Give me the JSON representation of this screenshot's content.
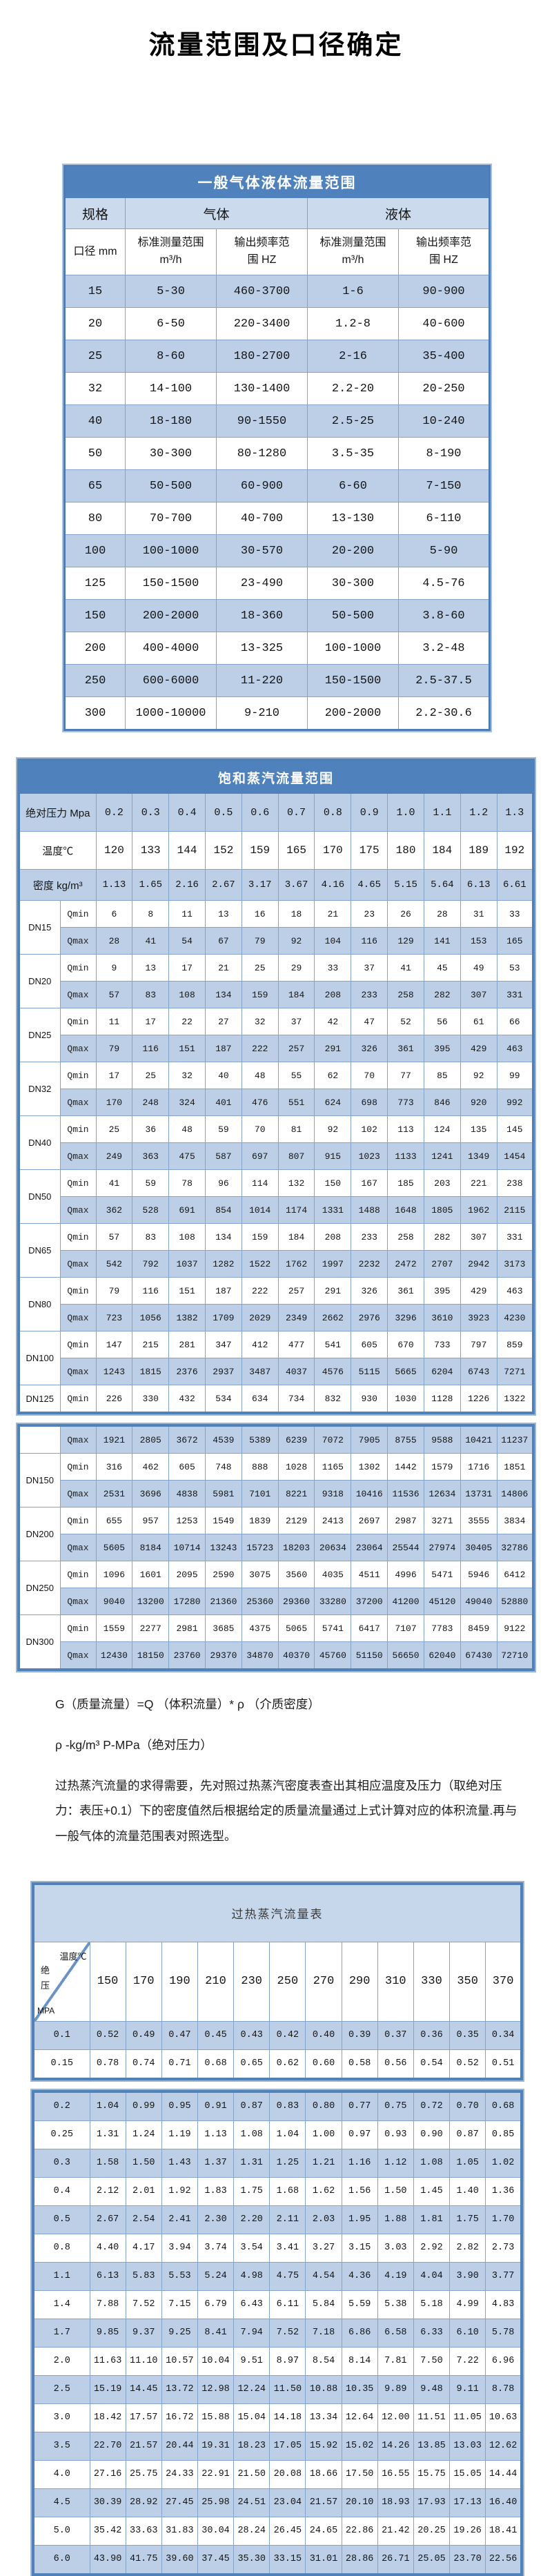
{
  "page_title": "流量范围及口径确定",
  "table1": {
    "title": "一般气体液体流量范围",
    "header": {
      "spec": "规格",
      "gas": "气体",
      "liquid": "液体",
      "diameter": "口径 mm",
      "range_l1": "标准测量范围",
      "range_l2": "m³/h",
      "freq_l1": "输出频率范",
      "freq_l2": "围 HZ"
    },
    "rows": [
      [
        "15",
        "5-30",
        "460-3700",
        "1-6",
        "90-900"
      ],
      [
        "20",
        "6-50",
        "220-3400",
        "1.2-8",
        "40-600"
      ],
      [
        "25",
        "8-60",
        "180-2700",
        "2-16",
        "35-400"
      ],
      [
        "32",
        "14-100",
        "130-1400",
        "2.2-20",
        "20-250"
      ],
      [
        "40",
        "18-180",
        "90-1550",
        "2.5-25",
        "10-240"
      ],
      [
        "50",
        "30-300",
        "80-1280",
        "3.5-35",
        "8-190"
      ],
      [
        "65",
        "50-500",
        "60-900",
        "6-60",
        "7-150"
      ],
      [
        "80",
        "70-700",
        "40-700",
        "13-130",
        "6-110"
      ],
      [
        "100",
        "100-1000",
        "30-570",
        "20-200",
        "5-90"
      ],
      [
        "125",
        "150-1500",
        "23-490",
        "30-300",
        "4.5-76"
      ],
      [
        "150",
        "200-2000",
        "18-360",
        "50-500",
        "3.8-60"
      ],
      [
        "200",
        "400-4000",
        "13-325",
        "100-1000",
        "3.2-48"
      ],
      [
        "250",
        "600-6000",
        "11-220",
        "150-1500",
        "2.5-37.5"
      ],
      [
        "300",
        "1000-10000",
        "9-210",
        "200-2000",
        "2.2-30.6"
      ]
    ]
  },
  "table2": {
    "title": "饱和蒸汽流量范围",
    "pressure_label": "绝对压力 Mpa",
    "temperature_label": "温度℃",
    "density_label": "密度 kg/m³",
    "qmin_label": "Qmin",
    "qmax_label": "Qmax",
    "pressures": [
      "0.2",
      "0.3",
      "0.4",
      "0.5",
      "0.6",
      "0.7",
      "0.8",
      "0.9",
      "1.0",
      "1.1",
      "1.2",
      "1.3"
    ],
    "temperatures": [
      "120",
      "133",
      "144",
      "152",
      "159",
      "165",
      "170",
      "175",
      "180",
      "184",
      "189",
      "192"
    ],
    "densities": [
      "1.13",
      "1.65",
      "2.16",
      "2.67",
      "3.17",
      "3.67",
      "4.16",
      "4.65",
      "5.15",
      "5.64",
      "6.13",
      "6.61"
    ],
    "groups_a": [
      {
        "dn": "DN15",
        "qmin": [
          "6",
          "8",
          "11",
          "13",
          "16",
          "18",
          "21",
          "23",
          "26",
          "28",
          "31",
          "33"
        ],
        "qmax": [
          "28",
          "41",
          "54",
          "67",
          "79",
          "92",
          "104",
          "116",
          "129",
          "141",
          "153",
          "165"
        ]
      },
      {
        "dn": "DN20",
        "qmin": [
          "9",
          "13",
          "17",
          "21",
          "25",
          "29",
          "33",
          "37",
          "41",
          "45",
          "49",
          "53"
        ],
        "qmax": [
          "57",
          "83",
          "108",
          "134",
          "159",
          "184",
          "208",
          "233",
          "258",
          "282",
          "307",
          "331"
        ]
      },
      {
        "dn": "DN25",
        "qmin": [
          "11",
          "17",
          "22",
          "27",
          "32",
          "37",
          "42",
          "47",
          "52",
          "56",
          "61",
          "66"
        ],
        "qmax": [
          "79",
          "116",
          "151",
          "187",
          "222",
          "257",
          "291",
          "326",
          "361",
          "395",
          "429",
          "463"
        ]
      },
      {
        "dn": "DN32",
        "qmin": [
          "17",
          "25",
          "32",
          "40",
          "48",
          "55",
          "62",
          "70",
          "77",
          "85",
          "92",
          "99"
        ],
        "qmax": [
          "170",
          "248",
          "324",
          "401",
          "476",
          "551",
          "624",
          "698",
          "773",
          "846",
          "920",
          "992"
        ]
      },
      {
        "dn": "DN40",
        "qmin": [
          "25",
          "36",
          "48",
          "59",
          "70",
          "81",
          "92",
          "102",
          "113",
          "124",
          "135",
          "145"
        ],
        "qmax": [
          "249",
          "363",
          "475",
          "587",
          "697",
          "807",
          "915",
          "1023",
          "1133",
          "1241",
          "1349",
          "1454"
        ]
      },
      {
        "dn": "DN50",
        "qmin": [
          "41",
          "59",
          "78",
          "96",
          "114",
          "132",
          "150",
          "167",
          "185",
          "203",
          "221",
          "238"
        ],
        "qmax": [
          "362",
          "528",
          "691",
          "854",
          "1014",
          "1174",
          "1331",
          "1488",
          "1648",
          "1805",
          "1962",
          "2115"
        ]
      },
      {
        "dn": "DN65",
        "qmin": [
          "57",
          "83",
          "108",
          "134",
          "159",
          "184",
          "208",
          "233",
          "258",
          "282",
          "307",
          "331"
        ],
        "qmax": [
          "542",
          "792",
          "1037",
          "1282",
          "1522",
          "1762",
          "1997",
          "2232",
          "2472",
          "2707",
          "2942",
          "3173"
        ]
      },
      {
        "dn": "DN80",
        "qmin": [
          "79",
          "116",
          "151",
          "187",
          "222",
          "257",
          "291",
          "326",
          "361",
          "395",
          "429",
          "463"
        ],
        "qmax": [
          "723",
          "1056",
          "1382",
          "1709",
          "2029",
          "2349",
          "2662",
          "2976",
          "3296",
          "3610",
          "3923",
          "4230"
        ]
      },
      {
        "dn": "DN100",
        "qmin": [
          "147",
          "215",
          "281",
          "347",
          "412",
          "477",
          "541",
          "605",
          "670",
          "733",
          "797",
          "859"
        ],
        "qmax": [
          "1243",
          "1815",
          "2376",
          "2937",
          "3487",
          "4037",
          "4576",
          "5115",
          "5665",
          "6204",
          "6743",
          "7271"
        ]
      },
      {
        "dn": "DN125",
        "qmin": [
          "226",
          "330",
          "432",
          "534",
          "634",
          "734",
          "832",
          "930",
          "1030",
          "1128",
          "1226",
          "1322"
        ]
      }
    ],
    "orphan_qmax": [
      "1921",
      "2805",
      "3672",
      "4539",
      "5389",
      "6239",
      "7072",
      "7905",
      "8755",
      "9588",
      "10421",
      "11237"
    ],
    "groups_b": [
      {
        "dn": "DN150",
        "qmin": [
          "316",
          "462",
          "605",
          "748",
          "888",
          "1028",
          "1165",
          "1302",
          "1442",
          "1579",
          "1716",
          "1851"
        ],
        "qmax": [
          "2531",
          "3696",
          "4838",
          "5981",
          "7101",
          "8221",
          "9318",
          "10416",
          "11536",
          "12634",
          "13731",
          "14806"
        ]
      },
      {
        "dn": "DN200",
        "qmin": [
          "655",
          "957",
          "1253",
          "1549",
          "1839",
          "2129",
          "2413",
          "2697",
          "2987",
          "3271",
          "3555",
          "3834"
        ],
        "qmax": [
          "5605",
          "8184",
          "10714",
          "13243",
          "15723",
          "18203",
          "20634",
          "23064",
          "25544",
          "27974",
          "30405",
          "32786"
        ]
      },
      {
        "dn": "DN250",
        "qmin": [
          "1096",
          "1601",
          "2095",
          "2590",
          "3075",
          "3560",
          "4035",
          "4511",
          "4996",
          "5471",
          "5946",
          "6412"
        ],
        "qmax": [
          "9040",
          "13200",
          "17280",
          "21360",
          "25360",
          "29360",
          "33280",
          "37200",
          "41200",
          "45120",
          "49040",
          "52880"
        ]
      },
      {
        "dn": "DN300",
        "qmin": [
          "1559",
          "2277",
          "2981",
          "3685",
          "4375",
          "5065",
          "5741",
          "6417",
          "7107",
          "7783",
          "8459",
          "9122"
        ],
        "qmax": [
          "12430",
          "18150",
          "23760",
          "29370",
          "34870",
          "40370",
          "45760",
          "51150",
          "56650",
          "62040",
          "67430",
          "72710"
        ]
      }
    ]
  },
  "notes": {
    "line1": "G（质量流量）=Q （体积流量）* ρ （介质密度）",
    "line2": "ρ -kg/m³ P-MPa（绝对压力）",
    "line3": "过热蒸汽流量的求得需要，先对照过热蒸汽密度表查出其相应温度及压力（取绝对压力：表压+0.1）下的密度值然后根据给定的质量流量通过上式计算对应的体积流量.再与一般气体的流量范围表对照选型。"
  },
  "table3": {
    "title": "过热蒸汽流量表",
    "corner": {
      "temp": "温度℃",
      "pressure": "绝压",
      "unit": "MPA"
    },
    "temps": [
      "150",
      "170",
      "190",
      "210",
      "230",
      "250",
      "270",
      "290",
      "310",
      "330",
      "350",
      "370"
    ],
    "rows_a": [
      {
        "p": "0.1",
        "v": [
          "0.52",
          "0.49",
          "0.47",
          "0.45",
          "0.43",
          "0.42",
          "0.40",
          "0.39",
          "0.37",
          "0.36",
          "0.35",
          "0.34"
        ]
      },
      {
        "p": "0.15",
        "v": [
          "0.78",
          "0.74",
          "0.71",
          "0.68",
          "0.65",
          "0.62",
          "0.60",
          "0.58",
          "0.56",
          "0.54",
          "0.52",
          "0.51"
        ]
      }
    ],
    "rows_b": [
      {
        "p": "0.2",
        "v": [
          "1.04",
          "0.99",
          "0.95",
          "0.91",
          "0.87",
          "0.83",
          "0.80",
          "0.77",
          "0.75",
          "0.72",
          "0.70",
          "0.68"
        ]
      },
      {
        "p": "0.25",
        "v": [
          "1.31",
          "1.24",
          "1.19",
          "1.13",
          "1.08",
          "1.04",
          "1.00",
          "0.97",
          "0.93",
          "0.90",
          "0.87",
          "0.85"
        ]
      },
      {
        "p": "0.3",
        "v": [
          "1.58",
          "1.50",
          "1.43",
          "1.37",
          "1.31",
          "1.25",
          "1.21",
          "1.16",
          "1.12",
          "1.08",
          "1.05",
          "1.02"
        ]
      },
      {
        "p": "0.4",
        "v": [
          "2.12",
          "2.01",
          "1.92",
          "1.83",
          "1.75",
          "1.68",
          "1.62",
          "1.56",
          "1.50",
          "1.45",
          "1.40",
          "1.36"
        ]
      },
      {
        "p": "0.5",
        "v": [
          "2.67",
          "2.54",
          "2.41",
          "2.30",
          "2.20",
          "2.11",
          "2.03",
          "1.95",
          "1.88",
          "1.81",
          "1.75",
          "1.70"
        ]
      },
      {
        "p": "0.8",
        "v": [
          "4.40",
          "4.17",
          "3.94",
          "3.74",
          "3.54",
          "3.41",
          "3.27",
          "3.15",
          "3.03",
          "2.92",
          "2.82",
          "2.73"
        ]
      },
      {
        "p": "1.1",
        "v": [
          "6.13",
          "5.83",
          "5.53",
          "5.24",
          "4.98",
          "4.75",
          "4.54",
          "4.36",
          "4.19",
          "4.04",
          "3.90",
          "3.77"
        ]
      },
      {
        "p": "1.4",
        "v": [
          "7.88",
          "7.52",
          "7.15",
          "6.79",
          "6.43",
          "6.11",
          "5.84",
          "5.59",
          "5.38",
          "5.18",
          "4.99",
          "4.83"
        ]
      },
      {
        "p": "1.7",
        "v": [
          "9.85",
          "9.37",
          "9.25",
          "8.41",
          "7.94",
          "7.52",
          "7.18",
          "6.86",
          "6.58",
          "6.33",
          "6.10",
          "5.78"
        ]
      },
      {
        "p": "2.0",
        "v": [
          "11.63",
          "11.10",
          "10.57",
          "10.04",
          "9.51",
          "8.97",
          "8.54",
          "8.14",
          "7.81",
          "7.50",
          "7.22",
          "6.96"
        ]
      },
      {
        "p": "2.5",
        "v": [
          "15.19",
          "14.45",
          "13.72",
          "12.98",
          "12.24",
          "11.50",
          "10.88",
          "10.35",
          "9.89",
          "9.48",
          "9.11",
          "8.78"
        ]
      },
      {
        "p": "3.0",
        "v": [
          "18.42",
          "17.57",
          "16.72",
          "15.88",
          "15.04",
          "14.18",
          "13.34",
          "12.64",
          "12.00",
          "11.51",
          "11.05",
          "10.63"
        ]
      },
      {
        "p": "3.5",
        "v": [
          "22.70",
          "21.57",
          "20.44",
          "19.31",
          "18.23",
          "17.05",
          "15.92",
          "15.02",
          "14.26",
          "13.85",
          "13.03",
          "12.62"
        ]
      },
      {
        "p": "4.0",
        "v": [
          "27.16",
          "25.75",
          "24.33",
          "22.91",
          "21.50",
          "20.08",
          "18.66",
          "17.50",
          "16.55",
          "15.75",
          "15.05",
          "14.44"
        ]
      },
      {
        "p": "4.5",
        "v": [
          "30.39",
          "28.92",
          "27.45",
          "25.98",
          "24.51",
          "23.04",
          "21.57",
          "20.10",
          "18.93",
          "17.93",
          "17.13",
          "16.40"
        ]
      },
      {
        "p": "5.0",
        "v": [
          "35.42",
          "33.63",
          "31.83",
          "30.04",
          "28.24",
          "26.45",
          "24.65",
          "22.86",
          "21.42",
          "20.25",
          "19.26",
          "18.41"
        ]
      },
      {
        "p": "6.0",
        "v": [
          "43.90",
          "41.75",
          "39.60",
          "37.45",
          "35.30",
          "33.15",
          "31.01",
          "28.86",
          "26.71",
          "25.05",
          "23.70",
          "22.56"
        ]
      }
    ]
  }
}
